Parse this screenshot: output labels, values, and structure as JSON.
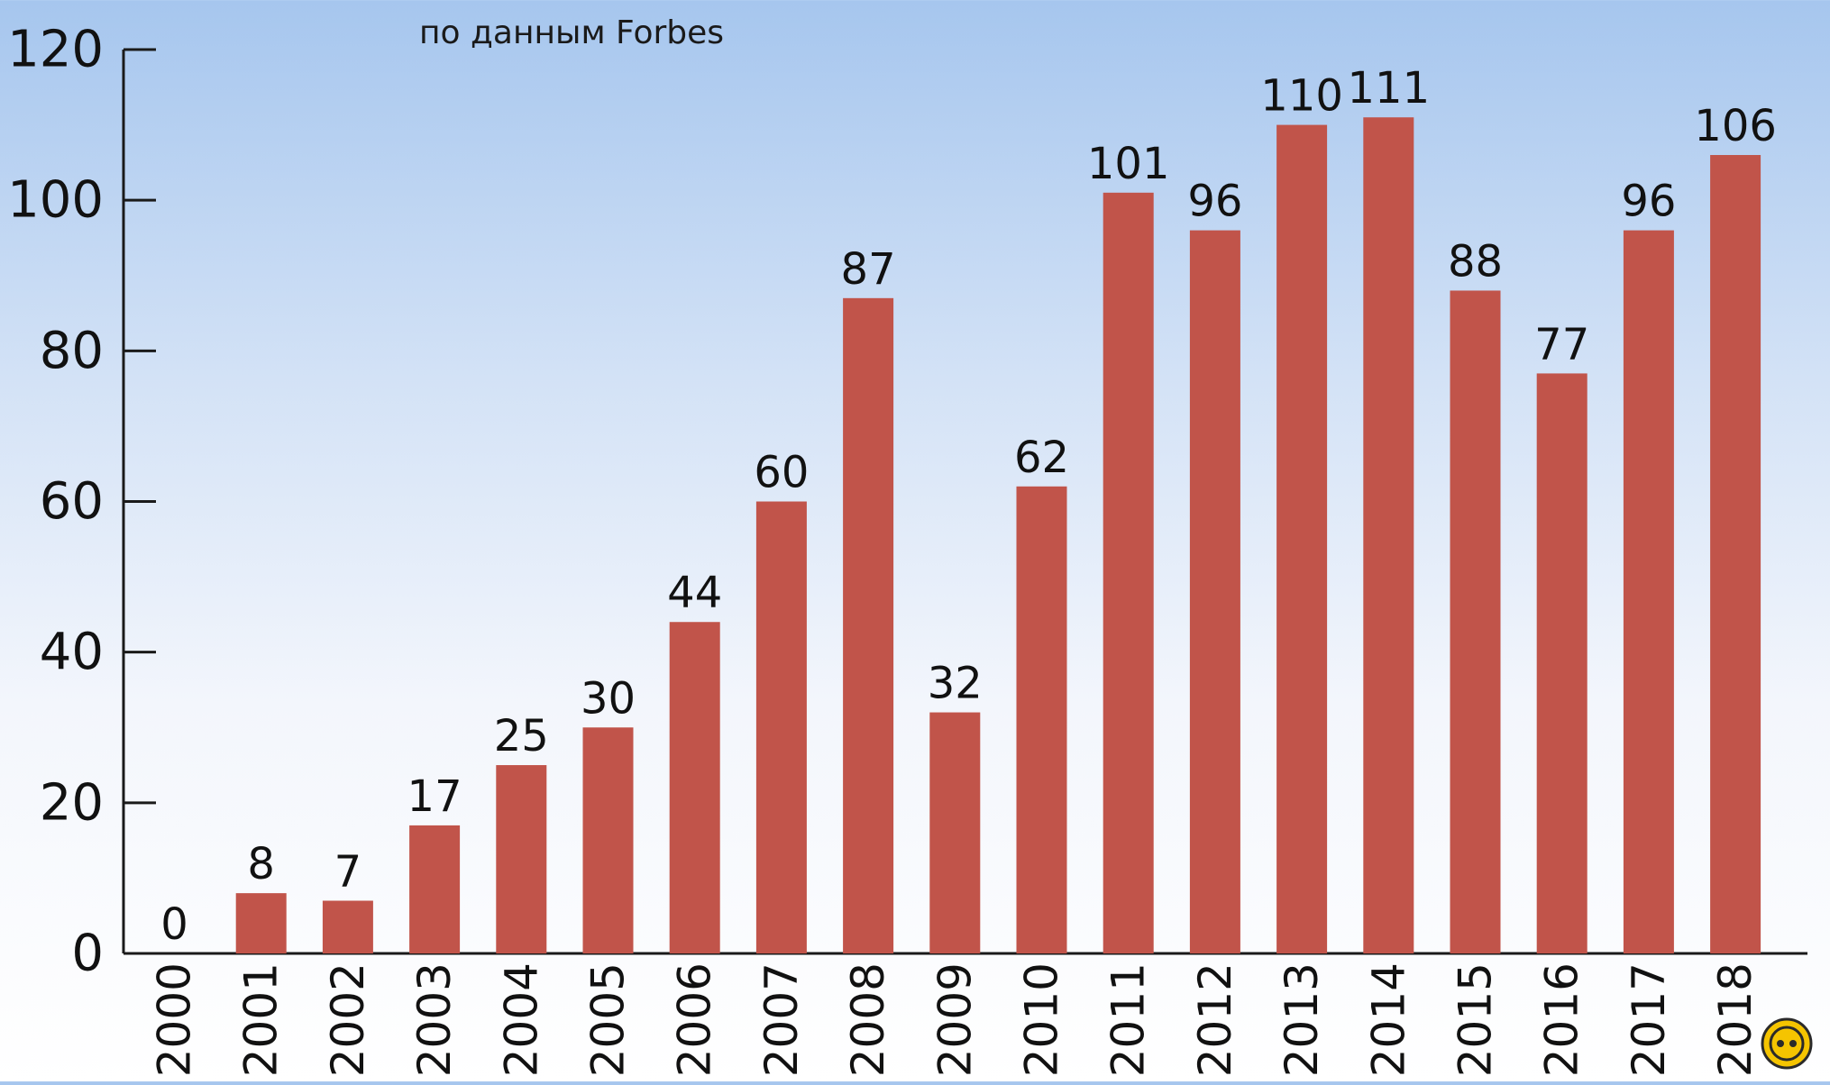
{
  "chart_data": {
    "type": "bar",
    "subtitle": "по данным Forbes",
    "categories": [
      "2000",
      "2001",
      "2002",
      "2003",
      "2004",
      "2005",
      "2006",
      "2007",
      "2008",
      "2009",
      "2010",
      "2011",
      "2012",
      "2013",
      "2014",
      "2015",
      "2016",
      "2017",
      "2018"
    ],
    "values": [
      0,
      8,
      7,
      17,
      25,
      30,
      44,
      60,
      87,
      32,
      62,
      101,
      96,
      110,
      111,
      88,
      77,
      96,
      106
    ],
    "data_labels": [
      "0",
      "8",
      "7",
      "17",
      "25",
      "30",
      "44",
      "60",
      "87",
      "32",
      "62",
      "101",
      "96",
      "110",
      "111",
      "88",
      "77",
      "96",
      "106"
    ],
    "ylim": [
      0,
      120
    ],
    "yticks": [
      "0",
      "20",
      "40",
      "60",
      "80",
      "100",
      "120"
    ],
    "xlabel": "",
    "ylabel": "",
    "grid": false,
    "legend": "none",
    "colors": {
      "bar": "#c1544a",
      "axis": "#1a1a1a",
      "text": "#111111",
      "badge_fill": "#f5c400"
    }
  },
  "icons": {
    "corner_badge": "watermark-logo-icon"
  }
}
